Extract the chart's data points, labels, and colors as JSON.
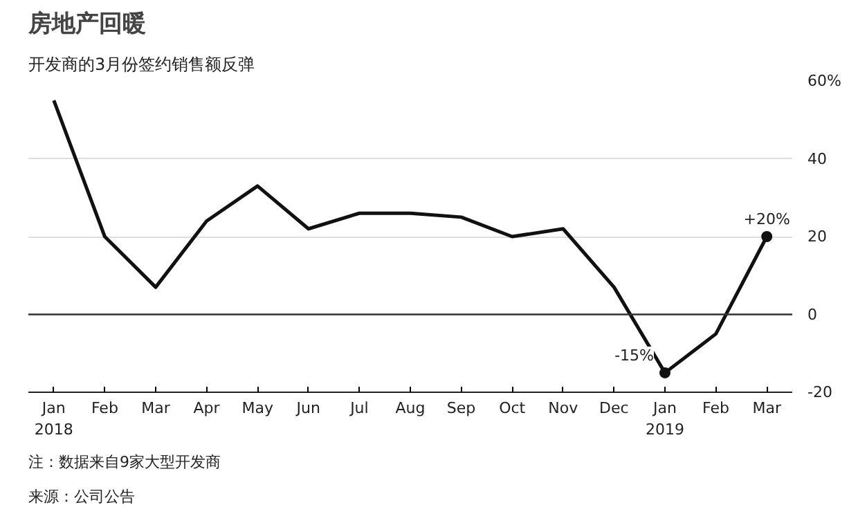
{
  "chart_data": {
    "type": "line",
    "title": "房地产回暖",
    "subtitle": "开发商的3月份签约销售额反弹",
    "categories": [
      "Jan\n2018",
      "Feb",
      "Mar",
      "Apr",
      "May",
      "Jun",
      "Jul",
      "Aug",
      "Sep",
      "Oct",
      "Nov",
      "Dec",
      "Jan\n2019",
      "Feb",
      "Mar"
    ],
    "series": [
      {
        "color": "#111111",
        "values": [
          55,
          20,
          7,
          24,
          33,
          22,
          26,
          26,
          25,
          20,
          22,
          7,
          -15,
          -5,
          20
        ],
        "value_labels": [
          null,
          null,
          null,
          null,
          null,
          null,
          null,
          null,
          null,
          null,
          null,
          null,
          "-15%",
          null,
          "+20%"
        ]
      }
    ],
    "ylim": [
      -20,
      60
    ],
    "yticks": [
      -20,
      0,
      20,
      40,
      {
        "value": 60,
        "label": "60%"
      }
    ],
    "grid": "y",
    "line_style": "solid",
    "ref_lines": [
      {
        "axis": "y",
        "value": 0,
        "color": "#333333"
      }
    ],
    "annotations": [
      "注：数据来自9家大型开发商",
      "来源：公司公告"
    ]
  }
}
